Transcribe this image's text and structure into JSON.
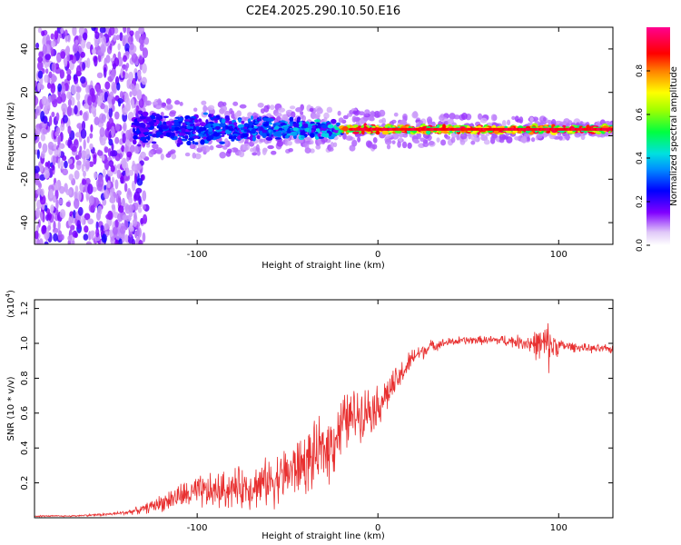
{
  "title": "C2E4.2025.290.10.50.E16",
  "colors": {
    "snr_line": "#e83030",
    "axis": "#000000",
    "scatter_main": "#5a00e6",
    "scatter_light": "#c8a8f0"
  },
  "chart_data": [
    {
      "type": "heatmap",
      "xlabel": "Height of straight line (km)",
      "ylabel": "Frequency (Hz)",
      "xlim": [
        -190,
        130
      ],
      "ylim": [
        -50,
        50
      ],
      "x_ticks": [
        -100,
        0,
        100
      ],
      "x_tick_labels": [
        "-100",
        "0",
        "100"
      ],
      "y_ticks": [
        -40,
        -20,
        0,
        20,
        40
      ],
      "y_tick_labels": [
        "-40",
        "-20",
        "0",
        "20",
        "40"
      ],
      "description_bands": [
        {
          "x_range": [
            -190,
            -130
          ],
          "freq_spread": 50,
          "amplitude": 0.15
        },
        {
          "x_range": [
            -130,
            -20
          ],
          "freq_center": 4,
          "freq_spread": 12,
          "amplitude": 0.3
        },
        {
          "x_range": [
            -20,
            130
          ],
          "freq_center": 3,
          "freq_spread": 2,
          "amplitude": 0.9
        }
      ],
      "colorbar": {
        "label": "Normalized spectral amplitude",
        "range": [
          0,
          1
        ],
        "ticks": [
          0.0,
          0.2,
          0.4,
          0.6,
          0.8
        ],
        "tick_labels": [
          "0.0",
          "0.2",
          "0.4",
          "0.6",
          "0.8"
        ]
      }
    },
    {
      "type": "line",
      "xlabel": "Height of straight line (km)",
      "ylabel": "SNR (10 * v/v)",
      "multiplier_label": "(x10",
      "multiplier_exp": "4",
      "xlim": [
        -190,
        130
      ],
      "ylim": [
        0,
        1.25
      ],
      "x_ticks": [
        -100,
        0,
        100
      ],
      "x_tick_labels": [
        "-100",
        "0",
        "100"
      ],
      "y_ticks": [
        0.2,
        0.4,
        0.6,
        0.8,
        1.0,
        1.2
      ],
      "y_tick_labels": [
        "0.2",
        "0.4",
        "0.6",
        "0.8",
        "1.0",
        "1.2"
      ],
      "series": [
        {
          "name": "SNR",
          "x": [
            -190,
            -170,
            -150,
            -140,
            -130,
            -120,
            -110,
            -100,
            -90,
            -80,
            -70,
            -60,
            -50,
            -40,
            -30,
            -25,
            -20,
            -10,
            0,
            5,
            10,
            15,
            20,
            30,
            40,
            50,
            60,
            70,
            80,
            90,
            95,
            100,
            110,
            120,
            130
          ],
          "values": [
            0.01,
            0.01,
            0.02,
            0.03,
            0.05,
            0.09,
            0.13,
            0.15,
            0.16,
            0.18,
            0.19,
            0.22,
            0.27,
            0.33,
            0.4,
            0.45,
            0.55,
            0.62,
            0.65,
            0.72,
            0.78,
            0.86,
            0.93,
            0.99,
            1.01,
            1.02,
            1.02,
            1.02,
            1.01,
            1.0,
            1.0,
            0.99,
            0.98,
            0.97,
            0.97
          ],
          "noise_amplitude": [
            0.005,
            0.005,
            0.01,
            0.015,
            0.03,
            0.06,
            0.09,
            0.12,
            0.13,
            0.14,
            0.15,
            0.17,
            0.2,
            0.22,
            0.24,
            0.24,
            0.22,
            0.18,
            0.15,
            0.13,
            0.11,
            0.09,
            0.07,
            0.04,
            0.03,
            0.03,
            0.03,
            0.04,
            0.05,
            0.12,
            0.18,
            0.05,
            0.03,
            0.03,
            0.03
          ]
        }
      ]
    }
  ]
}
